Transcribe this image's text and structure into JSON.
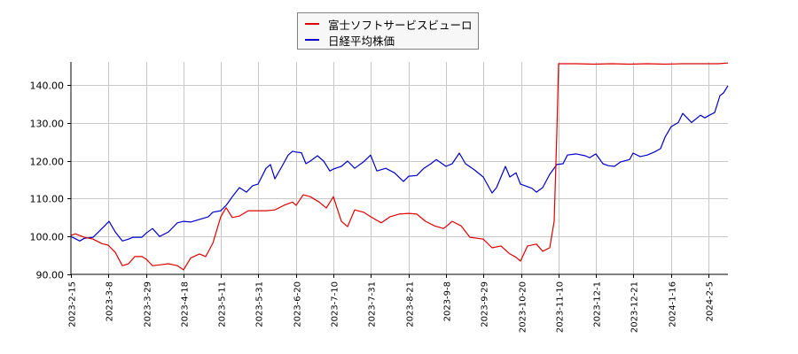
{
  "chart_data": {
    "type": "line",
    "title": "",
    "xlabel": "",
    "ylabel": "",
    "ylim": [
      90,
      146
    ],
    "grid": true,
    "legend_position": "top-center",
    "y_ticks": [
      "90.00",
      "100.00",
      "110.00",
      "120.00",
      "130.00",
      "140.00"
    ],
    "x_ticks": [
      "2023-2-15",
      "2023-3-8",
      "2023-3-29",
      "2023-4-18",
      "2023-5-11",
      "2023-5-31",
      "2023-6-20",
      "2023-7-10",
      "2023-7-31",
      "2023-8-21",
      "2023-9-8",
      "2023-9-29",
      "2023-10-20",
      "2023-11-10",
      "2023-12-1",
      "2023-12-21",
      "2024-1-16",
      "2024-2-5"
    ],
    "series": [
      {
        "name": "富士ソフトサービスビューロ",
        "color": "#e00000",
        "points": [
          [
            80,
            100.3
          ],
          [
            85,
            100.7
          ],
          [
            95,
            99.8
          ],
          [
            105,
            99.3
          ],
          [
            115,
            98.1
          ],
          [
            122,
            97.7
          ],
          [
            130,
            95.8
          ],
          [
            138,
            92.3
          ],
          [
            145,
            92.8
          ],
          [
            152,
            94.7
          ],
          [
            160,
            94.7
          ],
          [
            165,
            94.0
          ],
          [
            172,
            92.3
          ],
          [
            180,
            92.5
          ],
          [
            190,
            92.8
          ],
          [
            200,
            92.3
          ],
          [
            207,
            91.2
          ],
          [
            215,
            94.3
          ],
          [
            225,
            95.4
          ],
          [
            232,
            94.7
          ],
          [
            240,
            98.2
          ],
          [
            249,
            105.2
          ],
          [
            255,
            107.6
          ],
          [
            262,
            105.0
          ],
          [
            270,
            105.4
          ],
          [
            280,
            106.8
          ],
          [
            291,
            106.8
          ],
          [
            300,
            106.8
          ],
          [
            310,
            107.0
          ],
          [
            320,
            108.2
          ],
          [
            330,
            109.1
          ],
          [
            334,
            108.2
          ],
          [
            342,
            111.0
          ],
          [
            350,
            110.5
          ],
          [
            360,
            109.1
          ],
          [
            368,
            107.5
          ],
          [
            376,
            110.5
          ],
          [
            385,
            104.0
          ],
          [
            392,
            102.6
          ],
          [
            400,
            107.0
          ],
          [
            410,
            106.4
          ],
          [
            418,
            105.2
          ],
          [
            430,
            103.6
          ],
          [
            440,
            105.2
          ],
          [
            450,
            105.9
          ],
          [
            461,
            106.1
          ],
          [
            470,
            105.9
          ],
          [
            480,
            104.0
          ],
          [
            490,
            102.8
          ],
          [
            500,
            102.1
          ],
          [
            503,
            102.6
          ],
          [
            510,
            104.0
          ],
          [
            520,
            102.8
          ],
          [
            530,
            99.8
          ],
          [
            545,
            99.3
          ],
          [
            555,
            97.0
          ],
          [
            565,
            97.5
          ],
          [
            575,
            95.4
          ],
          [
            582,
            94.5
          ],
          [
            587,
            93.5
          ],
          [
            595,
            97.5
          ],
          [
            605,
            98.0
          ],
          [
            612,
            96.1
          ],
          [
            620,
            97.0
          ],
          [
            625,
            104.0
          ],
          [
            628,
            127.4
          ],
          [
            630,
            145.6
          ],
          [
            650,
            145.6
          ],
          [
            670,
            145.5
          ],
          [
            690,
            145.6
          ],
          [
            710,
            145.5
          ],
          [
            730,
            145.6
          ],
          [
            750,
            145.5
          ],
          [
            770,
            145.6
          ],
          [
            790,
            145.6
          ],
          [
            810,
            145.6
          ],
          [
            821,
            145.8
          ]
        ]
      },
      {
        "name": "日経平均株価",
        "color": "#0000cc",
        "points": [
          [
            80,
            100.0
          ],
          [
            90,
            98.8
          ],
          [
            95,
            99.5
          ],
          [
            105,
            99.8
          ],
          [
            115,
            102.1
          ],
          [
            123,
            104.0
          ],
          [
            130,
            101.2
          ],
          [
            138,
            98.8
          ],
          [
            145,
            99.3
          ],
          [
            150,
            99.8
          ],
          [
            160,
            99.8
          ],
          [
            165,
            100.9
          ],
          [
            172,
            102.1
          ],
          [
            180,
            100.0
          ],
          [
            190,
            101.2
          ],
          [
            200,
            103.6
          ],
          [
            207,
            104.0
          ],
          [
            215,
            103.8
          ],
          [
            225,
            104.5
          ],
          [
            235,
            105.2
          ],
          [
            240,
            106.4
          ],
          [
            249,
            106.8
          ],
          [
            255,
            108.2
          ],
          [
            262,
            110.5
          ],
          [
            270,
            112.9
          ],
          [
            278,
            111.7
          ],
          [
            285,
            113.4
          ],
          [
            291,
            113.8
          ],
          [
            300,
            118.0
          ],
          [
            305,
            119.0
          ],
          [
            310,
            115.2
          ],
          [
            318,
            118.5
          ],
          [
            325,
            121.5
          ],
          [
            330,
            122.5
          ],
          [
            334,
            122.3
          ],
          [
            340,
            122.1
          ],
          [
            345,
            119.2
          ],
          [
            350,
            119.9
          ],
          [
            358,
            121.3
          ],
          [
            365,
            119.9
          ],
          [
            372,
            117.3
          ],
          [
            376,
            117.8
          ],
          [
            385,
            118.5
          ],
          [
            392,
            119.9
          ],
          [
            400,
            118.0
          ],
          [
            410,
            119.7
          ],
          [
            418,
            121.5
          ],
          [
            425,
            117.3
          ],
          [
            435,
            118.0
          ],
          [
            445,
            116.8
          ],
          [
            455,
            114.5
          ],
          [
            461,
            115.9
          ],
          [
            470,
            116.1
          ],
          [
            478,
            118.0
          ],
          [
            486,
            119.2
          ],
          [
            492,
            120.3
          ],
          [
            503,
            118.5
          ],
          [
            510,
            119.2
          ],
          [
            518,
            122.0
          ],
          [
            525,
            119.2
          ],
          [
            535,
            117.6
          ],
          [
            545,
            115.7
          ],
          [
            555,
            111.5
          ],
          [
            560,
            112.9
          ],
          [
            570,
            118.5
          ],
          [
            575,
            115.7
          ],
          [
            582,
            116.8
          ],
          [
            587,
            113.8
          ],
          [
            592,
            113.4
          ],
          [
            600,
            112.7
          ],
          [
            605,
            111.7
          ],
          [
            612,
            112.9
          ],
          [
            620,
            116.4
          ],
          [
            628,
            119.0
          ],
          [
            635,
            119.2
          ],
          [
            640,
            121.5
          ],
          [
            650,
            121.8
          ],
          [
            660,
            121.3
          ],
          [
            665,
            120.8
          ],
          [
            672,
            121.8
          ],
          [
            680,
            119.2
          ],
          [
            686,
            118.7
          ],
          [
            693,
            118.5
          ],
          [
            700,
            119.7
          ],
          [
            710,
            120.3
          ],
          [
            714,
            122.0
          ],
          [
            722,
            121.1
          ],
          [
            730,
            121.5
          ],
          [
            738,
            122.3
          ],
          [
            745,
            123.2
          ],
          [
            750,
            126.2
          ],
          [
            757,
            129.0
          ],
          [
            765,
            130.1
          ],
          [
            770,
            132.5
          ],
          [
            780,
            130.1
          ],
          [
            790,
            132.0
          ],
          [
            795,
            131.3
          ],
          [
            800,
            132.0
          ],
          [
            806,
            132.7
          ],
          [
            812,
            137.2
          ],
          [
            816,
            137.9
          ],
          [
            821,
            139.8
          ]
        ]
      }
    ]
  },
  "legend": {
    "items": [
      {
        "label": "富士ソフトサービスビューロ",
        "color": "#e00000"
      },
      {
        "label": "日経平均株価",
        "color": "#0000cc"
      }
    ]
  }
}
